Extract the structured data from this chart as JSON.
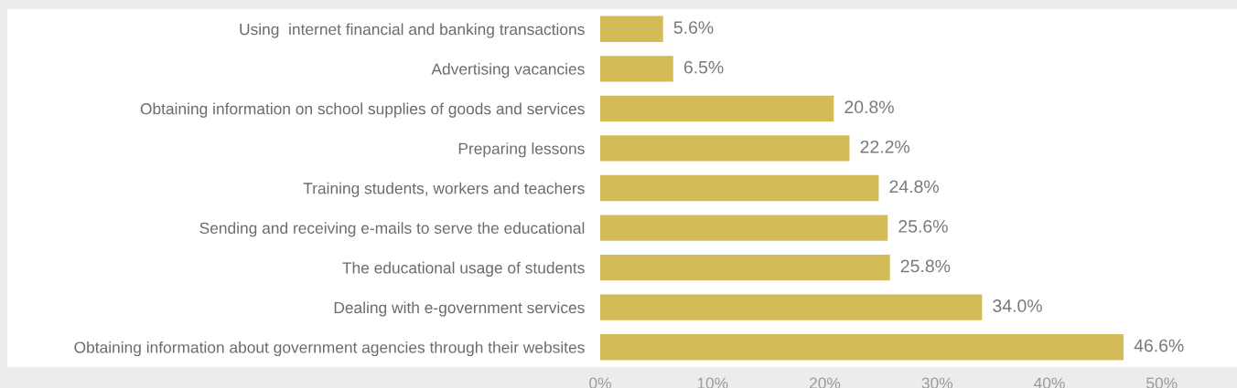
{
  "chart_data": {
    "type": "bar",
    "orientation": "horizontal",
    "categories": [
      "Using  internet financial and banking transactions",
      "Advertising vacancies",
      "Obtaining information on school supplies of goods and services",
      "Preparing lessons",
      "Training students, workers and teachers",
      "Sending and receiving e-mails to serve the educational",
      "The educational usage of students",
      "Dealing with e-government services",
      "Obtaining information about government agencies through their websites"
    ],
    "values": [
      5.6,
      6.5,
      20.8,
      22.2,
      24.8,
      25.6,
      25.8,
      34.0,
      46.6
    ],
    "value_labels": [
      "5.6%",
      "6.5%",
      "20.8%",
      "22.2%",
      "24.8%",
      "25.6%",
      "25.8%",
      "34.0%",
      "46.6%"
    ],
    "color": "#d3bb58",
    "xlim": [
      0,
      56.7
    ],
    "xticks": [
      {
        "value": 0,
        "label": "0%"
      },
      {
        "value": 10,
        "label": "10%"
      },
      {
        "value": 20,
        "label": "20%"
      },
      {
        "value": 30,
        "label": "30%"
      },
      {
        "value": 40,
        "label": "40%"
      },
      {
        "value": 50,
        "label": "50%"
      }
    ],
    "grid": false,
    "legend": false
  }
}
